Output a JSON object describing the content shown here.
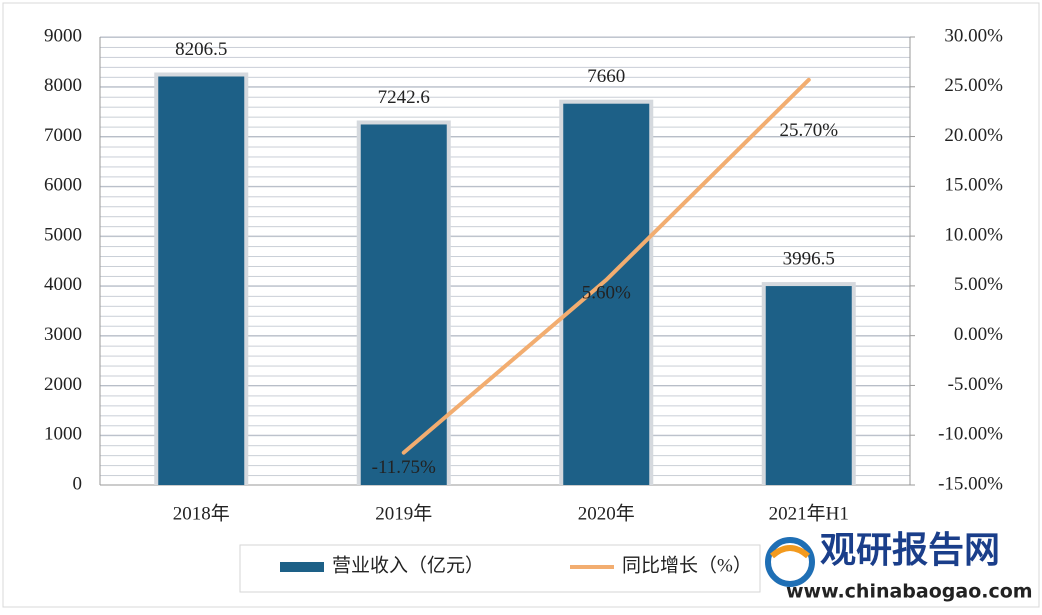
{
  "chart_data": {
    "type": "bar+line",
    "categories": [
      "2018年",
      "2019年",
      "2020年",
      "2021年H1"
    ],
    "series": [
      {
        "name": "营业收入（亿元）",
        "type": "bar",
        "color": "#1d6087",
        "values": [
          8206.5,
          7242.6,
          7660,
          3996.5
        ]
      },
      {
        "name": "同比增长（%）",
        "type": "line",
        "axis": "y2",
        "color": "#f2ad70",
        "values": [
          null,
          -11.75,
          5.6,
          25.7
        ],
        "value_labels": [
          null,
          "-11.75%",
          "5.60%",
          "25.70%"
        ]
      }
    ],
    "ylim": [
      0,
      9000
    ],
    "yticks": [
      0,
      1000,
      2000,
      3000,
      4000,
      5000,
      6000,
      7000,
      8000,
      9000
    ],
    "y2lim": [
      -15,
      30
    ],
    "y2ticks": [
      {
        "value": -15,
        "label": "-15.00%"
      },
      {
        "value": -10,
        "label": "-10.00%"
      },
      {
        "value": -5,
        "label": "-5.00%"
      },
      {
        "value": 0,
        "label": "0.00%"
      },
      {
        "value": 5,
        "label": "5.00%"
      },
      {
        "value": 10,
        "label": "10.00%"
      },
      {
        "value": 15,
        "label": "15.00%"
      },
      {
        "value": 20,
        "label": "20.00%"
      },
      {
        "value": 25,
        "label": "25.00%"
      },
      {
        "value": 30,
        "label": "30.00%"
      }
    ],
    "grid": true,
    "legend": "bottom"
  },
  "watermark": {
    "name": "观研报告网",
    "url": "www.chinabaogao.com"
  }
}
